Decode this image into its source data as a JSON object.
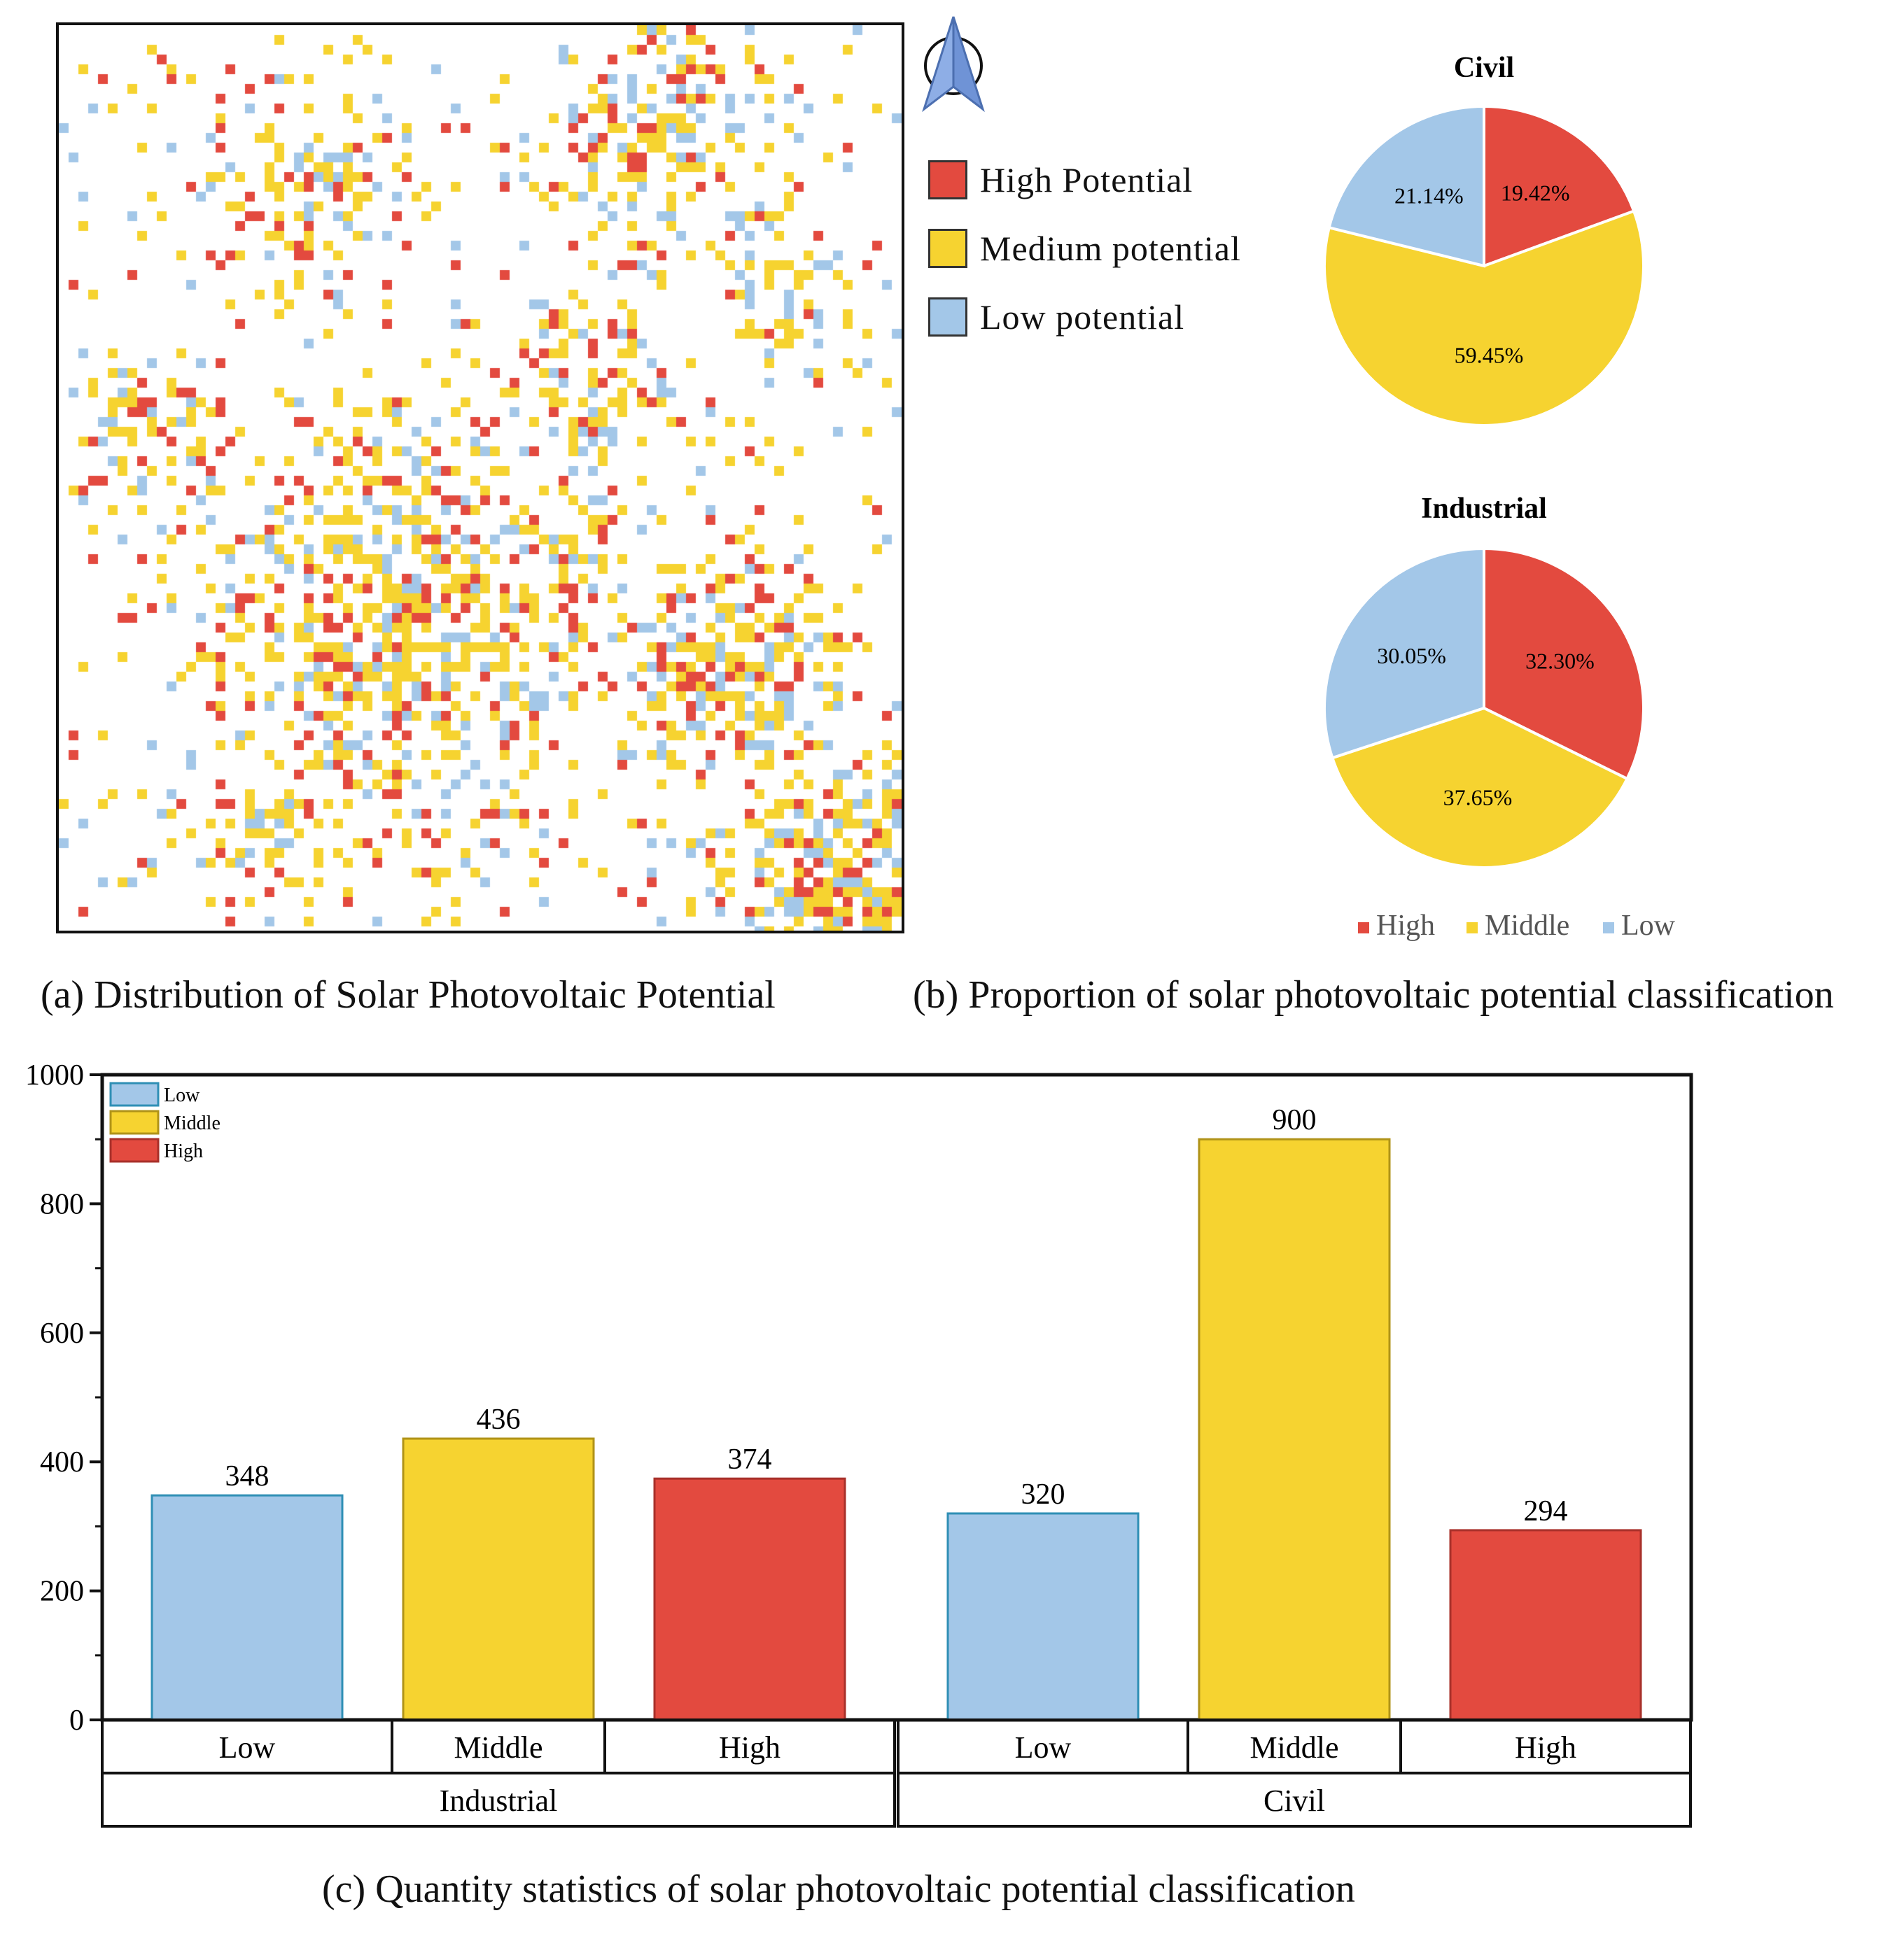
{
  "map": {
    "legend": [
      {
        "label": "High Potential",
        "color": "#e34a3f"
      },
      {
        "label": "Medium potential",
        "color": "#f6d330"
      },
      {
        "label": "Low potential",
        "color": "#a3c7e8"
      }
    ],
    "caption": "(a) Distribution of Solar Photovoltaic Potential"
  },
  "colors": {
    "high": "#e34a3f",
    "middle": "#f6d330",
    "low": "#a3c7e8",
    "north_arrow": "#6f93d6"
  },
  "pies": {
    "caption": "(b) Proportion of solar photovoltaic potential classification",
    "legend": [
      "High",
      "Middle",
      "Low"
    ]
  },
  "bars": {
    "caption": "(c) Quantity statistics of solar photovoltaic potential classification",
    "legend": [
      "Low",
      "Middle",
      "High"
    ]
  },
  "chart_data": [
    {
      "type": "pie",
      "title": "Civil",
      "labels": [
        "High",
        "Middle",
        "Low"
      ],
      "values": [
        19.42,
        59.45,
        21.14
      ],
      "value_labels": [
        "19.42%",
        "59.45%",
        "21.14%"
      ]
    },
    {
      "type": "pie",
      "title": "Industrial",
      "labels": [
        "High",
        "Middle",
        "Low"
      ],
      "values": [
        32.3,
        37.65,
        30.05
      ],
      "value_labels": [
        "32.30%",
        "37.65%",
        "30.05%"
      ]
    },
    {
      "type": "bar",
      "groups": [
        {
          "name": "Industrial",
          "categories": [
            "Low",
            "Middle",
            "High"
          ],
          "values": [
            348,
            436,
            374
          ]
        },
        {
          "name": "Civil",
          "categories": [
            "Low",
            "Middle",
            "High"
          ],
          "values": [
            320,
            900,
            294
          ]
        }
      ],
      "ylim": [
        0,
        1000
      ],
      "yticks": [
        0,
        200,
        400,
        600,
        800,
        1000
      ],
      "legend": [
        "Low",
        "Middle",
        "High"
      ],
      "legend_position": "top-left",
      "grid": false
    }
  ]
}
